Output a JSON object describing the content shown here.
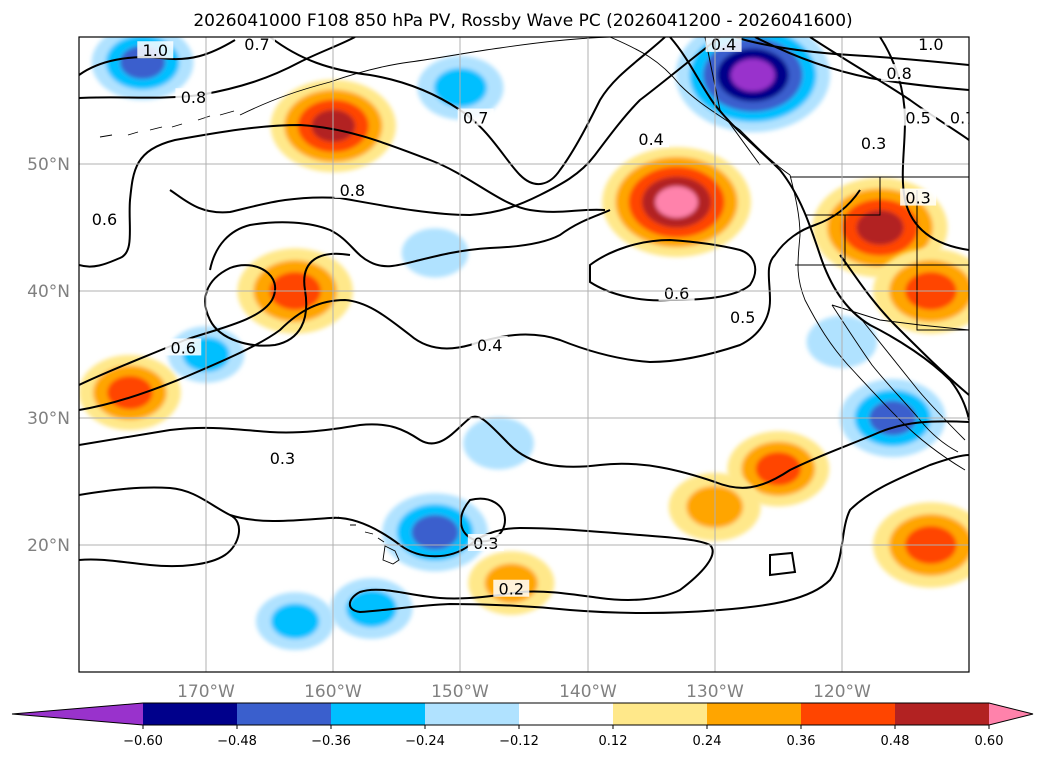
{
  "chart_data": {
    "type": "heatmap",
    "title": "2026041000 F108 850 hPa PV, Rossby Wave PC (2026041200 - 2026041600)",
    "lon_range": [
      -180,
      -110
    ],
    "lat_range": [
      10,
      60
    ],
    "x_ticks": [
      {
        "lon": -170,
        "label": "170°W"
      },
      {
        "lon": -160,
        "label": "160°W"
      },
      {
        "lon": -150,
        "label": "150°W"
      },
      {
        "lon": -140,
        "label": "140°W"
      },
      {
        "lon": -130,
        "label": "130°W"
      },
      {
        "lon": -120,
        "label": "120°W"
      }
    ],
    "y_ticks": [
      {
        "lat": 20,
        "label": "20°N"
      },
      {
        "lat": 30,
        "label": "30°N"
      },
      {
        "lat": 40,
        "label": "40°N"
      },
      {
        "lat": 50,
        "label": "50°N"
      }
    ],
    "grid": true,
    "colorbar": {
      "orientation": "horizontal",
      "extend": "both",
      "levels": [
        -0.72,
        -0.6,
        -0.48,
        -0.36,
        -0.24,
        -0.12,
        0.12,
        0.24,
        0.36,
        0.48,
        0.6,
        0.72
      ],
      "colors": [
        "#9932cc",
        "#00008b",
        "#3a5fcd",
        "#00bfff",
        "#b0e2ff",
        "#ffffff",
        "#ffe88a",
        "#ffa500",
        "#ff4500",
        "#b22222",
        "#ff82ab"
      ],
      "tick_labels": [
        "−0.60",
        "−0.48",
        "−0.36",
        "−0.24",
        "−0.12",
        "0.12",
        "0.24",
        "0.36",
        "0.48",
        "0.60"
      ]
    },
    "shaded_regions": [
      {
        "lon": -160,
        "lat": 53,
        "value": 0.5
      },
      {
        "lon": -163,
        "lat": 40,
        "value": 0.45
      },
      {
        "lon": -176,
        "lat": 32,
        "value": 0.38
      },
      {
        "lon": -133,
        "lat": 47,
        "value": 0.62
      },
      {
        "lon": -117,
        "lat": 45,
        "value": 0.55
      },
      {
        "lon": -113,
        "lat": 40,
        "value": 0.45
      },
      {
        "lon": -125,
        "lat": 26,
        "value": 0.38
      },
      {
        "lon": -130,
        "lat": 23,
        "value": 0.33
      },
      {
        "lon": -113,
        "lat": 20,
        "value": 0.45
      },
      {
        "lon": -146,
        "lat": 17,
        "value": 0.3
      },
      {
        "lon": -127,
        "lat": 57,
        "value": -0.65
      },
      {
        "lon": -175,
        "lat": 58,
        "value": -0.38
      },
      {
        "lon": -150,
        "lat": 56,
        "value": -0.3
      },
      {
        "lon": -116,
        "lat": 30,
        "value": -0.4
      },
      {
        "lon": -152,
        "lat": 21,
        "value": -0.4
      },
      {
        "lon": -157,
        "lat": 15,
        "value": -0.28
      },
      {
        "lon": -163,
        "lat": 14,
        "value": -0.26
      },
      {
        "lon": -170,
        "lat": 35,
        "value": -0.25
      },
      {
        "lon": -147,
        "lat": 28,
        "value": -0.22
      },
      {
        "lon": -152,
        "lat": 43,
        "value": -0.2
      },
      {
        "lon": -120,
        "lat": 36,
        "value": -0.22
      }
    ],
    "contours": [
      {
        "label": "1.0"
      },
      {
        "label": "0.8"
      },
      {
        "label": "0.7"
      },
      {
        "label": "0.6"
      },
      {
        "label": "0.5"
      },
      {
        "label": "0.4"
      },
      {
        "label": "0.3"
      },
      {
        "label": "0.2"
      }
    ],
    "contour_labels": [
      {
        "text": "1.0",
        "lon": -174,
        "lat": 58.8
      },
      {
        "text": "0.7",
        "lon": -166,
        "lat": 59.3
      },
      {
        "text": "0.8",
        "lon": -171,
        "lat": 55.1
      },
      {
        "text": "0.7",
        "lon": -148.8,
        "lat": 53.5
      },
      {
        "text": "0.6",
        "lon": -178,
        "lat": 45.5
      },
      {
        "text": "0.8",
        "lon": -158.5,
        "lat": 47.8
      },
      {
        "text": "0.6",
        "lon": -171.8,
        "lat": 35.4
      },
      {
        "text": "0.4",
        "lon": -147.7,
        "lat": 35.6
      },
      {
        "text": "0.4",
        "lon": -135,
        "lat": 51.8
      },
      {
        "text": "0.6",
        "lon": -133,
        "lat": 39.7
      },
      {
        "text": "0.5",
        "lon": -127.8,
        "lat": 37.8
      },
      {
        "text": "0.3",
        "lon": -164,
        "lat": 26.7
      },
      {
        "text": "0.3",
        "lon": -148,
        "lat": 20.0
      },
      {
        "text": "0.2",
        "lon": -146,
        "lat": 16.4
      },
      {
        "text": "0.4",
        "lon": -129.3,
        "lat": 59.3
      },
      {
        "text": "1.0",
        "lon": -113,
        "lat": 59.3
      },
      {
        "text": "0.8",
        "lon": -115.5,
        "lat": 57.0
      },
      {
        "text": "0.5",
        "lon": -114,
        "lat": 53.5
      },
      {
        "text": "0.7",
        "lon": -110.5,
        "lat": 53.5
      },
      {
        "text": "0.3",
        "lon": -117.5,
        "lat": 51.5
      },
      {
        "text": "0.3",
        "lon": -114,
        "lat": 47.2
      }
    ]
  }
}
